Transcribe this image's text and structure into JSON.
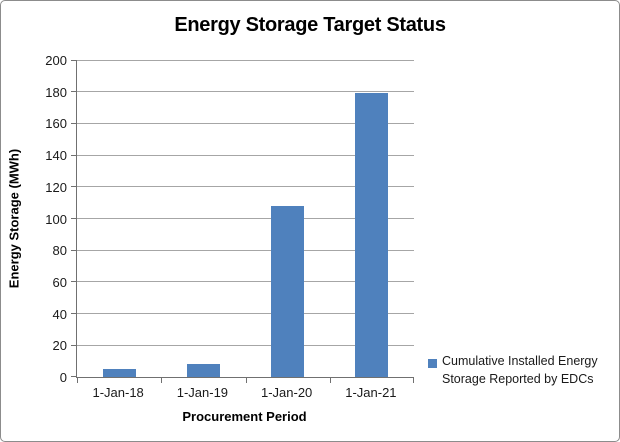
{
  "chart_data": {
    "type": "bar",
    "title": "Energy Storage Target Status",
    "categories": [
      "1-Jan-18",
      "1-Jan-19",
      "1-Jan-20",
      "1-Jan-21"
    ],
    "values": [
      5,
      8,
      108,
      179
    ],
    "series_name": "Cumulative Installed Energy Storage Reported by EDCs",
    "xlabel": "Procurement Period",
    "ylabel": "Energy Storage (MWh)",
    "ylim": [
      0,
      200
    ],
    "ytick_step": 20,
    "grid": true,
    "legend_position": "right",
    "bar_color": "#4F81BD",
    "gridline_color": "#A6A6A6",
    "axis_color": "#707070"
  },
  "legend": {
    "line1": "Cumulative Installed Energy",
    "line2": "Storage Reported by EDCs"
  }
}
